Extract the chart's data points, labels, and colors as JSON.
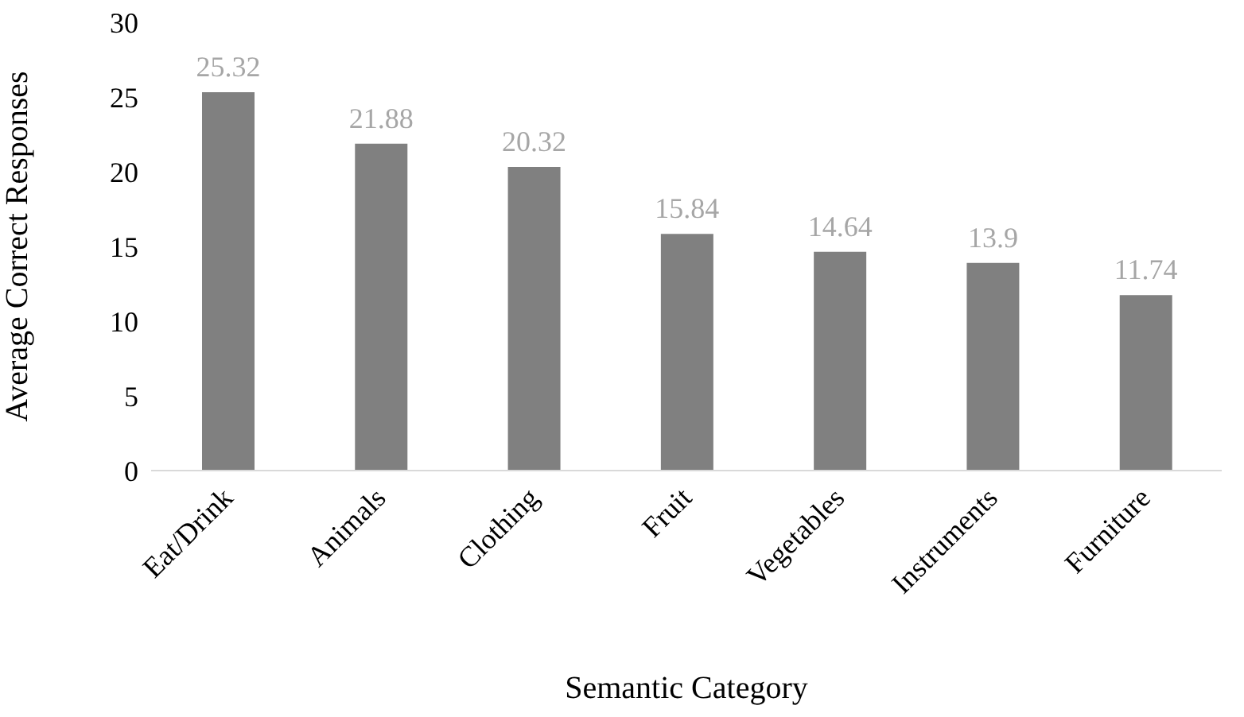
{
  "chart_data": {
    "type": "bar",
    "xlabel": "Semantic Category",
    "ylabel": "Average Correct Responses",
    "categories": [
      "Eat/Drink",
      "Animals",
      "Clothing",
      "Fruit",
      "Vegetables",
      "Instruments",
      "Furniture"
    ],
    "values": [
      25.32,
      21.88,
      20.32,
      15.84,
      14.64,
      13.9,
      11.74
    ],
    "color": "#808080",
    "ylim": [
      0,
      30
    ],
    "yticks": [
      0,
      5,
      10,
      15,
      20,
      25,
      30
    ],
    "grid": false,
    "legend": false,
    "data_labels": true
  }
}
